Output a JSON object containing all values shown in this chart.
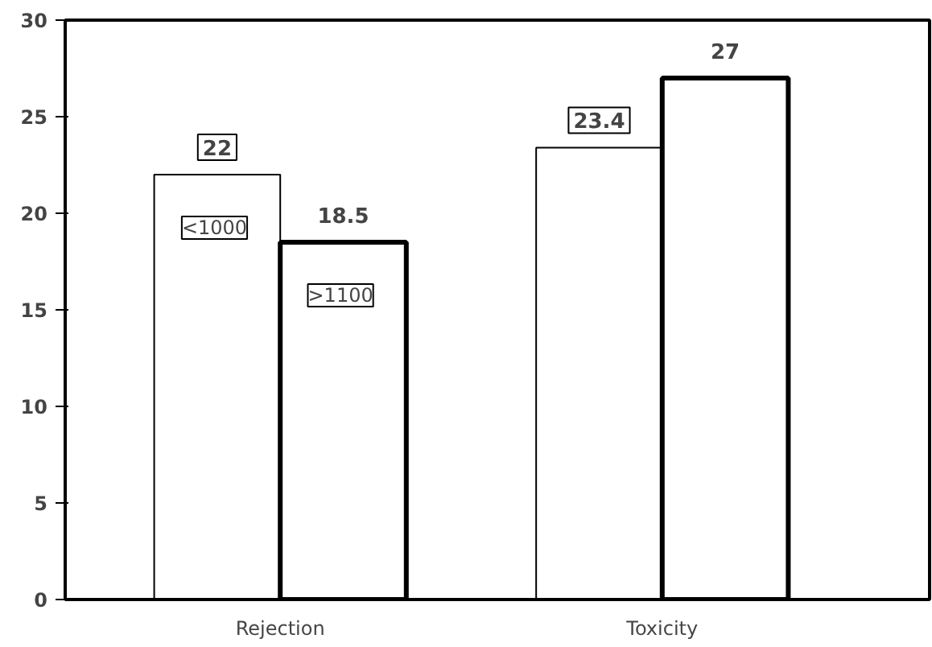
{
  "chart_data": {
    "type": "bar",
    "categories": [
      "Rejection",
      "Toxicity"
    ],
    "series": [
      {
        "name": "<1000",
        "color": "#ffffff",
        "values": [
          22,
          23.4
        ]
      },
      {
        "name": ">1100",
        "color": "#ffffff",
        "values": [
          18.5,
          27
        ]
      }
    ],
    "ylim": [
      0,
      30
    ],
    "yticks": [
      0,
      5,
      10,
      15,
      20,
      25,
      30
    ],
    "grid": false,
    "data_labels": true
  }
}
